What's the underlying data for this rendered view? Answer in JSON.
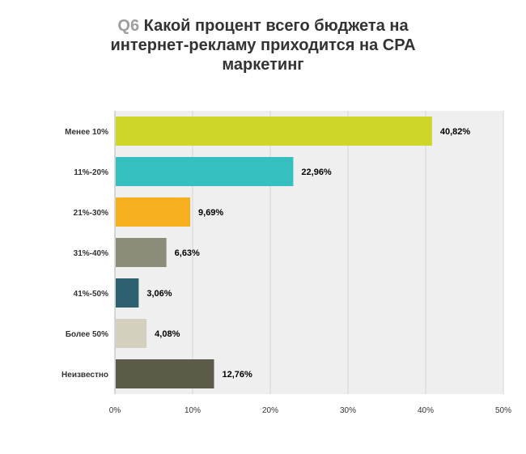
{
  "header": {
    "question_tag": "Q6",
    "title": "Какой процент всего бюджета на интернет-рекламу приходится на CPA маркетинг"
  },
  "chart_data": {
    "type": "bar",
    "orientation": "horizontal",
    "categories": [
      "Менее 10%",
      "11%-20%",
      "21%-30%",
      "31%-40%",
      "41%-50%",
      "Более 50%",
      "Неизвестно"
    ],
    "values": [
      40.82,
      22.96,
      9.69,
      6.63,
      3.06,
      4.08,
      12.76
    ],
    "value_labels": [
      "40,82%",
      "22,96%",
      "9,69%",
      "6,63%",
      "3,06%",
      "4,08%",
      "12,76%"
    ],
    "colors": [
      "#cfd62a",
      "#35bfbf",
      "#f6b01f",
      "#8c8c78",
      "#2d6170",
      "#d3d0bf",
      "#5c5a48"
    ],
    "xlim": [
      0,
      50
    ],
    "xticks": [
      0,
      10,
      20,
      30,
      40,
      50
    ],
    "xtick_labels": [
      "0%",
      "10%",
      "20%",
      "30%",
      "40%",
      "50%"
    ],
    "grid": true,
    "plot_background": "#efefef"
  }
}
